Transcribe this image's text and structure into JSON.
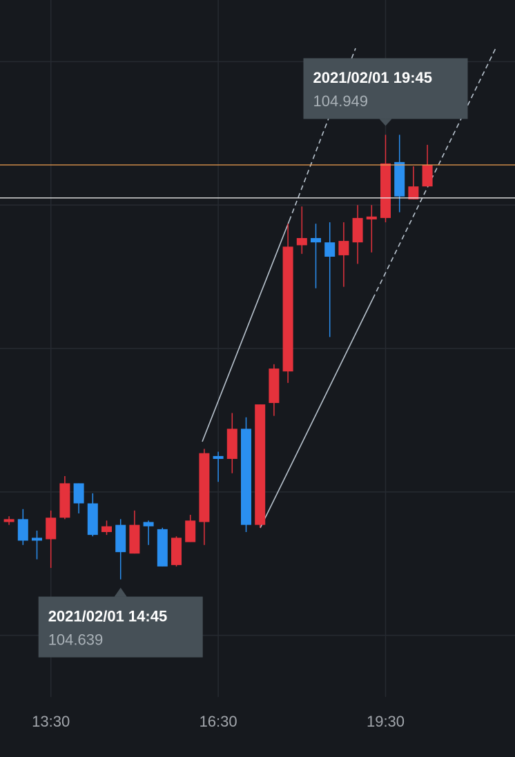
{
  "chart_data": {
    "type": "candlestick",
    "categories": [
      null,
      null,
      null,
      "13:30",
      null,
      null,
      null,
      null,
      null,
      null,
      null,
      null,
      null,
      null,
      null,
      "16:30",
      null,
      null,
      null,
      null,
      null,
      null,
      null,
      null,
      null,
      null,
      null,
      "19:30",
      null,
      null,
      null
    ],
    "open": [
      104.679,
      104.681,
      104.668,
      104.667,
      104.682,
      104.706,
      104.692,
      104.672,
      104.677,
      104.657,
      104.679,
      104.674,
      104.649,
      104.665,
      104.679,
      104.725,
      104.723,
      104.744,
      104.677,
      104.762,
      104.784,
      104.872,
      104.877,
      104.874,
      104.865,
      104.874,
      104.89,
      104.891,
      104.93,
      104.904,
      104.913
    ],
    "high": [
      104.683,
      104.688,
      104.673,
      104.687,
      104.711,
      104.706,
      104.699,
      104.68,
      104.681,
      104.687,
      104.68,
      104.675,
      104.669,
      104.684,
      104.73,
      104.728,
      104.755,
      104.752,
      104.761,
      104.789,
      104.887,
      104.899,
      104.887,
      104.888,
      104.888,
      104.9,
      104.9,
      104.949,
      104.949,
      104.927,
      104.942
    ],
    "low": [
      104.677,
      104.663,
      104.653,
      104.647,
      104.681,
      104.685,
      104.669,
      104.67,
      104.639,
      104.657,
      104.663,
      104.648,
      104.648,
      104.665,
      104.663,
      104.707,
      104.713,
      104.672,
      104.675,
      104.753,
      104.776,
      104.866,
      104.842,
      104.808,
      104.843,
      104.859,
      104.867,
      104.888,
      104.895,
      104.904,
      104.913
    ],
    "close": [
      104.681,
      104.666,
      104.666,
      104.682,
      104.706,
      104.692,
      104.67,
      104.676,
      104.658,
      104.677,
      104.676,
      104.648,
      104.668,
      104.68,
      104.727,
      104.723,
      104.744,
      104.677,
      104.761,
      104.786,
      104.871,
      104.877,
      104.874,
      104.864,
      104.875,
      104.891,
      104.892,
      104.929,
      104.906,
      104.913,
      104.928
    ],
    "up_color": "#e5323c",
    "down_color": "#2a8ff0",
    "ylim": [
      104.557,
      105.043
    ],
    "ygrid": [
      104.6,
      104.7,
      104.8,
      104.9,
      105.0
    ],
    "hlines": [
      {
        "value": 104.928,
        "color": "#f0a050"
      },
      {
        "value": 104.905,
        "color": "#e8e8e8"
      }
    ],
    "annotations": [
      {
        "title": "2021/02/01 19:45",
        "value": 104.949
      },
      {
        "title": "2021/02/01 14:45",
        "value": 104.639
      }
    ]
  }
}
